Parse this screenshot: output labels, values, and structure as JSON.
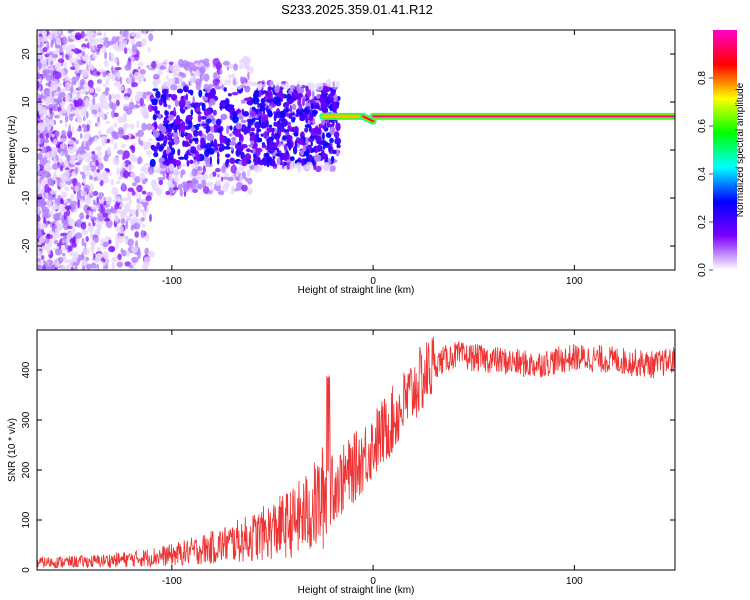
{
  "figure": {
    "title": "S233.2025.359.01.41.R12"
  },
  "chart_data": [
    {
      "type": "heatmap",
      "xlabel": "Height of straight line (km)",
      "ylabel": "Frequency (Hz)",
      "xlim": [
        -167,
        150
      ],
      "ylim": [
        -25,
        25
      ],
      "xticks": [
        -100,
        0,
        100
      ],
      "xtick_labels": [
        "-100",
        "0",
        "100"
      ],
      "yticks": [
        -20,
        -10,
        0,
        10,
        20
      ],
      "ytick_labels": [
        "-20",
        "-10",
        "0",
        "10",
        "20"
      ],
      "grid": false,
      "description_of_data": "Scattered low-amplitude noise at negative heights; a narrow high-amplitude line near 7 Hz from about -25 km to 150 km.",
      "line_segments": [
        {
          "x": [
            -25,
            -5
          ],
          "freq": [
            7,
            7
          ],
          "amplitude": 0.75
        },
        {
          "x": [
            -5,
            0
          ],
          "freq": [
            7,
            6
          ],
          "amplitude": 0.85
        },
        {
          "x": [
            0,
            150
          ],
          "freq": [
            7,
            7
          ],
          "amplitude": 0.95
        }
      ],
      "colorbar": {
        "label": "Normalized spectral amplitude",
        "range": [
          0,
          1
        ],
        "ticks": [
          0.0,
          0.2,
          0.4,
          0.6,
          0.8
        ],
        "tick_labels": [
          "0.0",
          "0.2",
          "0.4",
          "0.6",
          "0.8"
        ],
        "colormap": [
          "#ffffff",
          "#7b00ff",
          "#0000ff",
          "#00ffff",
          "#00ff00",
          "#ffff00",
          "#ff0000",
          "#ff00cc"
        ]
      }
    },
    {
      "type": "line",
      "xlabel": "Height of straight line (km)",
      "ylabel": "SNR (10 * v/v)",
      "xlim": [
        -167,
        150
      ],
      "ylim": [
        0,
        480
      ],
      "xticks": [
        -100,
        0,
        100
      ],
      "xtick_labels": [
        "-100",
        "0",
        "100"
      ],
      "yticks": [
        0,
        100,
        200,
        300,
        400
      ],
      "ytick_labels": [
        "0",
        "100",
        "200",
        "300",
        "400"
      ],
      "grid": false,
      "series": [
        {
          "name": "SNR",
          "color": "#ee3333",
          "x": [
            -167,
            -140,
            -120,
            -100,
            -80,
            -60,
            -40,
            -30,
            -22,
            -15,
            -8,
            0,
            10,
            20,
            30,
            40,
            60,
            80,
            100,
            120,
            140,
            150
          ],
          "y": [
            15,
            17,
            22,
            30,
            45,
            65,
            95,
            120,
            160,
            180,
            210,
            250,
            300,
            360,
            410,
            430,
            420,
            410,
            425,
            420,
            410,
            420
          ]
        }
      ]
    }
  ]
}
